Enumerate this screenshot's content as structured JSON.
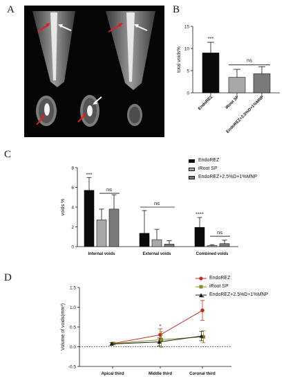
{
  "panel_letters": {
    "a": "A",
    "b": "B",
    "c": "C",
    "d": "D"
  },
  "colors": {
    "endorez": "#0a0a0a",
    "iroot": "#a8a8a8",
    "mnp": "#7a7a7a",
    "line_endorez": "#c8281e",
    "line_iroot": "#8a8a1e",
    "line_mnp": "#1a1a1a"
  },
  "chart_data": [
    {
      "panel": "B",
      "type": "bar",
      "categories": [
        "EndoREZ",
        "iRoot SP",
        "EndoREZ+2.5%D+1%MNP"
      ],
      "values": [
        9.0,
        3.5,
        4.3
      ],
      "errors": [
        2.4,
        1.8,
        1.6
      ],
      "ylabel": "total voids%",
      "ylim": [
        0,
        15
      ],
      "yticks": [
        "0",
        "5",
        "10",
        "15"
      ],
      "significance": [
        "***",
        "ns"
      ]
    },
    {
      "panel": "C",
      "type": "bar",
      "categories": [
        "Internal voids",
        "External voids",
        "Combined voids"
      ],
      "series": [
        {
          "name": "EndoREZ",
          "values": [
            5.7,
            1.35,
            1.95
          ],
          "errors": [
            1.3,
            2.3,
            1.0
          ]
        },
        {
          "name": "iRoot SP",
          "values": [
            2.7,
            0.7,
            0.1
          ],
          "errors": [
            1.1,
            1.05,
            0.1
          ]
        },
        {
          "name": "EndoREZ+2.5%D+1%MNP",
          "values": [
            3.8,
            0.25,
            0.3
          ],
          "errors": [
            1.45,
            0.35,
            0.35
          ]
        }
      ],
      "ylabel": "voids %",
      "ylim": [
        0,
        8
      ],
      "yticks": [
        "0",
        "2",
        "4",
        "6",
        "8"
      ],
      "significance": [
        "***",
        "ns",
        "ns",
        "****",
        "ns"
      ],
      "legend": "top-right"
    },
    {
      "panel": "D",
      "type": "line",
      "categories": [
        "Apical third",
        "Middle third",
        "Coronal third"
      ],
      "series": [
        {
          "name": "EndoREZ",
          "values": [
            0.08,
            0.3,
            0.92
          ],
          "errors": [
            0.03,
            0.15,
            0.25
          ]
        },
        {
          "name": "iRoot SP",
          "values": [
            0.08,
            0.18,
            0.25
          ],
          "errors": [
            0.03,
            0.2,
            0.15
          ]
        },
        {
          "name": "EndoREZ+2.5%D+1%MNP",
          "values": [
            0.07,
            0.12,
            0.27
          ],
          "errors": [
            0.03,
            0.1,
            0.12
          ]
        }
      ],
      "ylabel": "Volume of voids(mm³)",
      "ylim": [
        -0.5,
        1.5
      ],
      "yticks": [
        "-0.5",
        "0.0",
        "0.5",
        "1.0",
        "1.5"
      ],
      "significance": [
        "*",
        "**"
      ],
      "legend": "top-right"
    }
  ]
}
